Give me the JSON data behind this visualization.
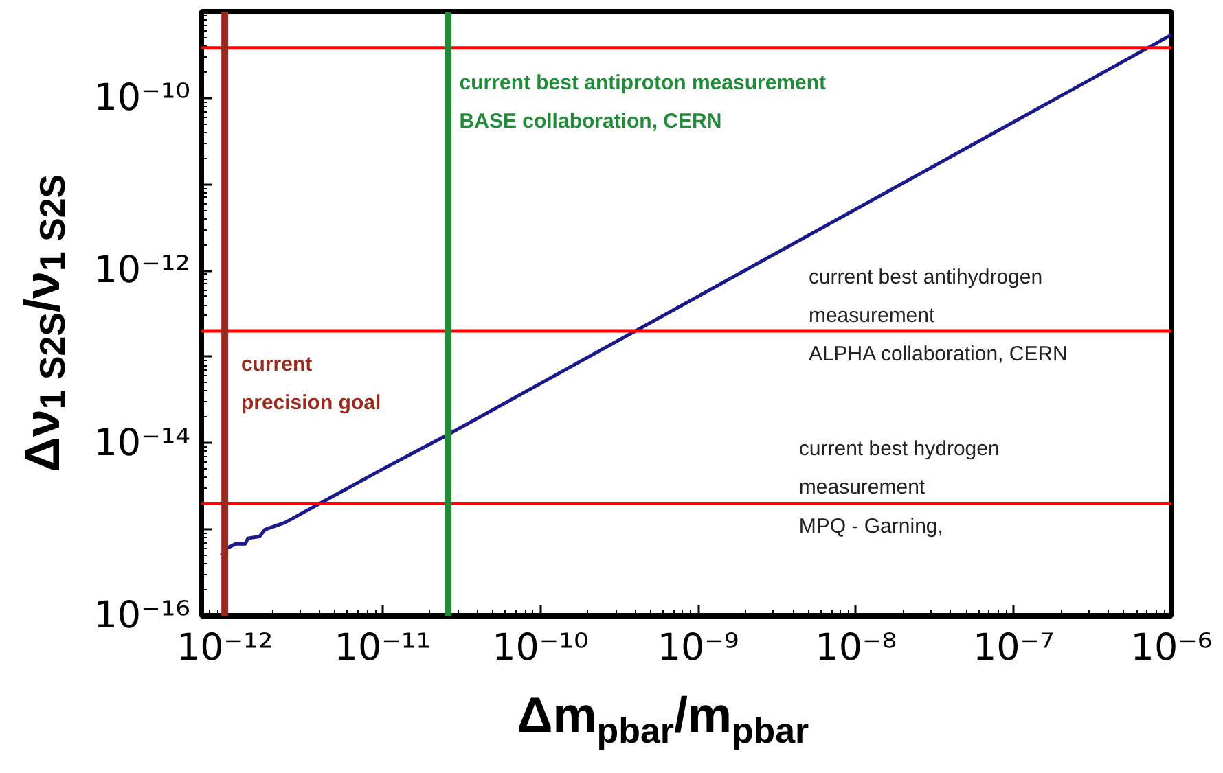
{
  "chart_data": {
    "type": "line",
    "xlabel": "Δm$_{pbar}$/m$_{pbar}$",
    "ylabel": "Δν$_{1 S2S}$/ν$_{1 S2S}$",
    "log": "xy",
    "grid": false,
    "marker": "none",
    "line_style": "solid",
    "xlim": [
      7.1e-13,
      1e-06
    ],
    "ylim": [
      1e-16,
      1e-09
    ],
    "xticks": [
      {
        "value": 1e-12,
        "label": "10⁻¹²"
      },
      {
        "value": 1e-11,
        "label": "10⁻¹¹"
      },
      {
        "value": 1e-10,
        "label": "10⁻¹⁰"
      },
      {
        "value": 1e-09,
        "label": "10⁻⁹"
      },
      {
        "value": 1e-08,
        "label": "10⁻⁸"
      },
      {
        "value": 1e-07,
        "label": "10⁻⁷"
      },
      {
        "value": 1e-06,
        "label": "10⁻⁶"
      }
    ],
    "yticks": [
      {
        "value": 1e-16,
        "label": "10⁻¹⁶"
      },
      {
        "value": 1e-15,
        "label": null
      },
      {
        "value": 1e-14,
        "label": "10⁻¹⁴"
      },
      {
        "value": 1e-13,
        "label": null
      },
      {
        "value": 1e-12,
        "label": "10⁻¹²"
      },
      {
        "value": 1e-11,
        "label": null
      },
      {
        "value": 1e-10,
        "label": "10⁻¹⁰"
      }
    ],
    "series": [
      {
        "color": "#1a1a8c",
        "x": [
          9.5e-13,
          1.02e-12,
          1.17e-12,
          1.35e-12,
          1.4e-12,
          1.66e-12,
          1.8e-12,
          2.4e-12,
          3.2e-12,
          5e-12,
          1e-11,
          1.6e-11,
          2.6e-11,
          1e-06
        ],
        "values": [
          5e-16,
          6e-16,
          6.8e-16,
          6.8e-16,
          7.9e-16,
          8.3e-16,
          1e-15,
          1.2e-15,
          1.6e-15,
          2.5e-15,
          5e-15,
          7.9e-15,
          1.26e-14,
          5.4e-10
        ]
      }
    ],
    "ref_lines": [
      {
        "axis": "y",
        "value": 3.8e-10,
        "color": "#ff0000"
      },
      {
        "axis": "y",
        "value": 2e-13,
        "color": "#ff0000"
      },
      {
        "axis": "y",
        "value": 2e-15,
        "color": "#ff0000"
      },
      {
        "axis": "x",
        "value": 1e-12,
        "color": "#9b2a1e"
      },
      {
        "axis": "x",
        "value": 2.6e-11,
        "color": "#228b3a"
      }
    ],
    "annotations": [
      "current best antiproton measurement\nBASE collaboration, CERN",
      "current best antihydrogen\nmeasurement\nALPHA collaboration, CERN",
      "current\nprecision goal",
      "current best hydrogen\nmeasurement\nMPQ - Garning,"
    ]
  }
}
